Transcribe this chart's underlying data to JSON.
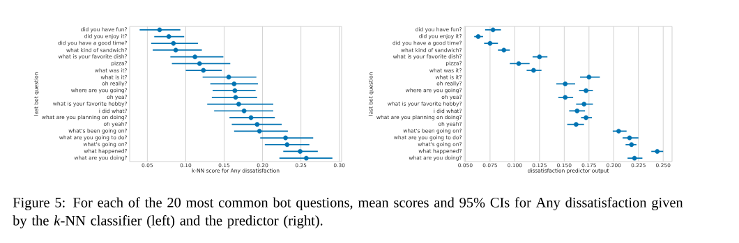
{
  "chart_data": [
    {
      "type": "scatter",
      "orientation": "horizontal",
      "xlabel": "k-NN score for Any dissatisfaction",
      "ylabel": "last bot question",
      "grid": "x",
      "marker": "circle",
      "color": "#0173b2",
      "categories": [
        "did you have fun?",
        "did you enjoy it?",
        "did you have a good time?",
        "what kind of sandwich?",
        "what is your favorite dish?",
        "pizza?",
        "what was it?",
        "what is it?",
        "oh really?",
        "where are you going?",
        "oh yea?",
        "what is your favorite hobby?",
        "i did what?",
        "what are you planning on doing?",
        "oh yeah?",
        "what's been going on?",
        "what are you going to do?",
        "what's going on?",
        "what happened?",
        "what are you doing?"
      ],
      "values": [
        0.066,
        0.078,
        0.084,
        0.087,
        0.112,
        0.118,
        0.123,
        0.156,
        0.163,
        0.164,
        0.165,
        0.169,
        0.176,
        0.185,
        0.193,
        0.196,
        0.23,
        0.232,
        0.249,
        0.257
      ],
      "errors": [
        [
          0.04,
          0.093
        ],
        [
          0.059,
          0.098
        ],
        [
          0.055,
          0.116
        ],
        [
          0.057,
          0.121
        ],
        [
          0.08,
          0.149
        ],
        [
          0.082,
          0.158
        ],
        [
          0.1,
          0.147
        ],
        [
          0.122,
          0.192
        ],
        [
          0.132,
          0.194
        ],
        [
          0.135,
          0.191
        ],
        [
          0.134,
          0.193
        ],
        [
          0.128,
          0.214
        ],
        [
          0.137,
          0.214
        ],
        [
          0.157,
          0.216
        ],
        [
          0.16,
          0.225
        ],
        [
          0.163,
          0.233
        ],
        [
          0.197,
          0.266
        ],
        [
          0.203,
          0.261
        ],
        [
          0.227,
          0.272
        ],
        [
          0.222,
          0.291
        ]
      ],
      "xlim": [
        0.027,
        0.303
      ],
      "xticks": [
        0.05,
        {
          "value": 0.1,
          "label": "0.10"
        },
        0.15,
        {
          "value": 0.2,
          "label": "0.20"
        },
        0.25,
        {
          "value": 0.3,
          "label": "0.30"
        }
      ],
      "annotations": [
        "Figure 5: For each of the 20 most common bot questions, mean scores and 95% CIs for Any dissatisfaction given by the *k*-NN classifier (left) and the predictor (right)."
      ]
    },
    {
      "type": "scatter",
      "orientation": "horizontal",
      "xlabel": "dissatisfaction predictor output",
      "ylabel": "last bot question",
      "grid": "x",
      "marker": "circle",
      "color": "#0173b2",
      "categories": [
        "did you have fun?",
        "did you enjoy it?",
        "did you have a good time?",
        "what kind of sandwich?",
        "what is your favorite dish?",
        "pizza?",
        "what was it?",
        "what is it?",
        "oh really?",
        "where are you going?",
        "oh yea?",
        "what is your favorite hobby?",
        "i did what?",
        "what are you planning on doing?",
        "oh yeah?",
        "what's been going on?",
        "what are you going to do?",
        "what's going on?",
        "what happened?",
        "what are you doing?"
      ],
      "values": [
        0.078,
        0.063,
        0.075,
        0.089,
        0.125,
        0.104,
        0.119,
        0.175,
        0.151,
        0.172,
        0.151,
        0.17,
        0.163,
        0.172,
        0.162,
        0.205,
        0.216,
        0.218,
        0.244,
        0.221
      ],
      "errors": [
        [
          0.07,
          0.086
        ],
        [
          0.059,
          0.068
        ],
        [
          0.069,
          0.083
        ],
        [
          0.083,
          0.095
        ],
        [
          0.118,
          0.133
        ],
        [
          0.095,
          0.115
        ],
        [
          0.112,
          0.127
        ],
        [
          0.166,
          0.186
        ],
        [
          0.142,
          0.161
        ],
        [
          0.165,
          0.179
        ],
        [
          0.144,
          0.159
        ],
        [
          0.162,
          0.179
        ],
        [
          0.155,
          0.171
        ],
        [
          0.167,
          0.178
        ],
        [
          0.153,
          0.17
        ],
        [
          0.199,
          0.213
        ],
        [
          0.209,
          0.225
        ],
        [
          0.212,
          0.223
        ],
        [
          0.238,
          0.25
        ],
        [
          0.214,
          0.229
        ]
      ],
      "xlim": [
        0.049,
        0.259
      ],
      "xticks": [
        {
          "value": 0.05,
          "label": "0.050"
        },
        0.075,
        {
          "value": 0.1,
          "label": "0.100"
        },
        0.125,
        {
          "value": 0.15,
          "label": "0.150"
        },
        0.175,
        {
          "value": 0.2,
          "label": "0.200"
        },
        0.225,
        {
          "value": 0.25,
          "label": "0.250"
        }
      ]
    }
  ]
}
